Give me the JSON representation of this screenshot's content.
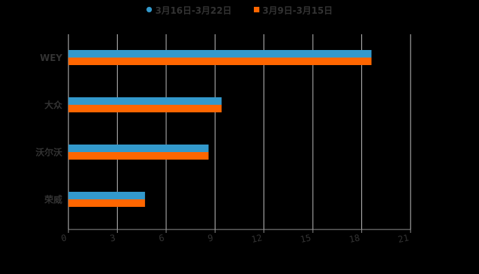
{
  "chart_data": {
    "type": "bar",
    "orientation": "horizontal",
    "title": "",
    "categories": [
      "WEY",
      "大众",
      "沃尔沃",
      "荣威"
    ],
    "series": [
      {
        "name": "3月16日-3月22日",
        "color": "#3399cc",
        "values": [
          18.6,
          9.4,
          8.6,
          4.7
        ]
      },
      {
        "name": "3月9日-3月15日",
        "color": "#ff6600",
        "values": [
          18.6,
          9.4,
          8.6,
          4.7
        ]
      }
    ],
    "xlabel": "",
    "ylabel": "",
    "xlim": [
      0,
      21
    ],
    "xticks": [
      0,
      3,
      6,
      9,
      12,
      15,
      18,
      21
    ],
    "grid": true,
    "legend_position": "top"
  },
  "legend": {
    "items": [
      {
        "label": "3月16日-3月22日",
        "color": "#3399cc",
        "marker": "circle"
      },
      {
        "label": "3月9日-3月15日",
        "color": "#ff6600",
        "marker": "square"
      }
    ]
  },
  "colors": {
    "background": "#000000",
    "grid": "#cccccc",
    "axis": "#999999",
    "text": "#333333"
  }
}
